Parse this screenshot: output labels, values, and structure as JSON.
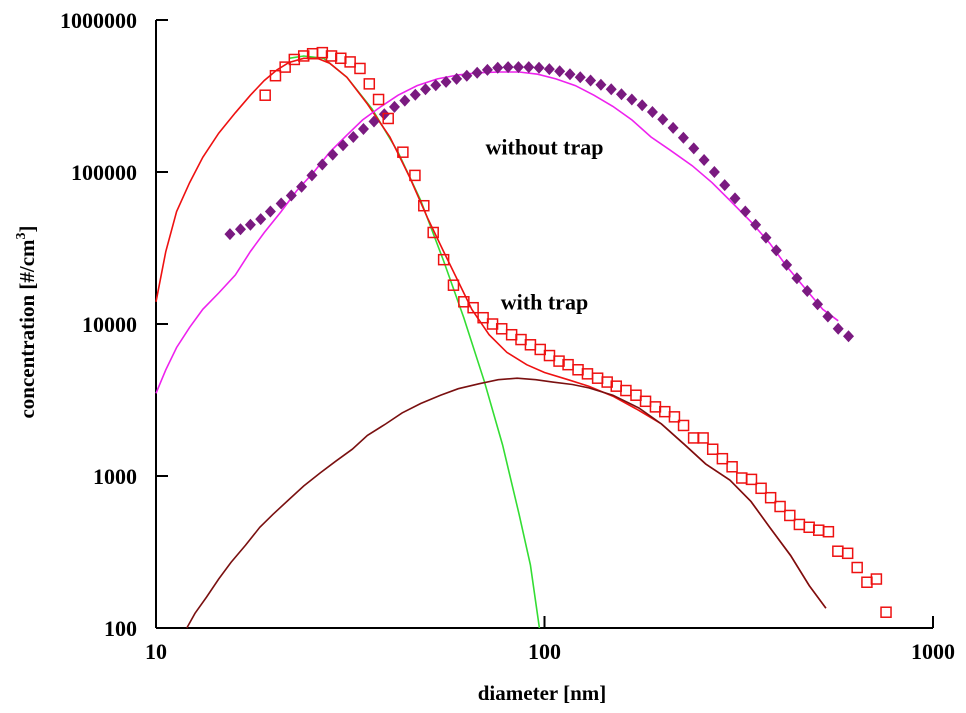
{
  "chart_data": {
    "type": "scatter",
    "title": "",
    "xlabel": "diameter [nm]",
    "ylabel_main": "concentration [#/cm",
    "ylabel_sup": "3",
    "ylabel_end": "]",
    "xscale": "log",
    "yscale": "log",
    "xlim": [
      10,
      1000
    ],
    "ylim": [
      100,
      1000000
    ],
    "x_ticks": [
      10,
      100,
      1000
    ],
    "x_tick_labels": [
      "10",
      "100",
      "1000"
    ],
    "y_ticks": [
      100,
      1000,
      10000,
      100000,
      1000000
    ],
    "y_tick_labels": [
      "100",
      "1000",
      "10000",
      "100000",
      "1000000"
    ],
    "grid": false,
    "annotations": [
      {
        "text": "without trap",
        "x": 100,
        "y": 130000
      },
      {
        "text": "with trap",
        "x": 100,
        "y": 12500
      }
    ],
    "colors": {
      "with_trap_markers": "#ee1111",
      "without_trap_markers": "#7a1a80",
      "fit_total": "#ee1111",
      "fit_mode1": "#33dd33",
      "fit_mode2": "#7a1010",
      "fit_without": "#ee22ee"
    },
    "series": [
      {
        "key": "without_trap_markers",
        "style": "diamond",
        "points": [
          [
            15.5,
            39000
          ],
          [
            16.5,
            42000
          ],
          [
            17.5,
            45000
          ],
          [
            18.6,
            49000
          ],
          [
            19.7,
            55000
          ],
          [
            21,
            62000
          ],
          [
            22.3,
            70000
          ],
          [
            23.7,
            80000
          ],
          [
            25.2,
            95000
          ],
          [
            26.8,
            112000
          ],
          [
            28.5,
            130000
          ],
          [
            30.3,
            150000
          ],
          [
            32.2,
            170000
          ],
          [
            34.2,
            192000
          ],
          [
            36.4,
            215000
          ],
          [
            38.7,
            240000
          ],
          [
            41.1,
            268000
          ],
          [
            43.7,
            295000
          ],
          [
            46.5,
            322000
          ],
          [
            49.4,
            350000
          ],
          [
            52.5,
            372000
          ],
          [
            55.8,
            392000
          ],
          [
            59.4,
            410000
          ],
          [
            63.1,
            430000
          ],
          [
            67.1,
            450000
          ],
          [
            71.3,
            470000
          ],
          [
            75.8,
            485000
          ],
          [
            80.6,
            490000
          ],
          [
            85.7,
            490000
          ],
          [
            91.1,
            490000
          ],
          [
            96.8,
            485000
          ],
          [
            102.9,
            475000
          ],
          [
            109.4,
            460000
          ],
          [
            116.3,
            440000
          ],
          [
            123.6,
            420000
          ],
          [
            131.4,
            400000
          ],
          [
            139.7,
            375000
          ],
          [
            148.5,
            350000
          ],
          [
            157.8,
            325000
          ],
          [
            167.8,
            300000
          ],
          [
            178.4,
            275000
          ],
          [
            189.6,
            248000
          ],
          [
            201.6,
            222000
          ],
          [
            214.3,
            195000
          ],
          [
            227.8,
            168000
          ],
          [
            242.2,
            143000
          ],
          [
            257.5,
            120000
          ],
          [
            273.7,
            100000
          ],
          [
            291,
            82000
          ],
          [
            309.3,
            67000
          ],
          [
            328.8,
            55000
          ],
          [
            349.5,
            45000
          ],
          [
            371.6,
            37000
          ],
          [
            395,
            30500
          ],
          [
            420,
            24500
          ],
          [
            446.4,
            20000
          ],
          [
            474.6,
            16500
          ],
          [
            504.5,
            13500
          ],
          [
            536.3,
            11200
          ],
          [
            570.1,
            9300
          ],
          [
            606.1,
            8300
          ]
        ]
      },
      {
        "key": "with_trap_markers",
        "style": "square",
        "points": [
          [
            19.1,
            320000
          ],
          [
            20.3,
            430000
          ],
          [
            21.5,
            490000
          ],
          [
            22.7,
            550000
          ],
          [
            24,
            580000
          ],
          [
            25.3,
            600000
          ],
          [
            26.8,
            610000
          ],
          [
            28.3,
            580000
          ],
          [
            29.9,
            560000
          ],
          [
            31.6,
            530000
          ],
          [
            33.5,
            480000
          ],
          [
            35.4,
            380000
          ],
          [
            37.4,
            300000
          ],
          [
            39.6,
            225000
          ],
          [
            43.2,
            135000
          ],
          [
            46.4,
            95000
          ],
          [
            48.9,
            60000
          ],
          [
            51.7,
            40000
          ],
          [
            55,
            26500
          ],
          [
            58.3,
            18000
          ],
          [
            62,
            14000
          ],
          [
            65.5,
            12800
          ],
          [
            69.5,
            11000
          ],
          [
            73.5,
            10000
          ],
          [
            77.6,
            9300
          ],
          [
            82.3,
            8500
          ],
          [
            87,
            7900
          ],
          [
            92,
            7300
          ],
          [
            97.5,
            6800
          ],
          [
            103,
            6200
          ],
          [
            109,
            5700
          ],
          [
            115,
            5400
          ],
          [
            122,
            5000
          ],
          [
            129,
            4700
          ],
          [
            137,
            4400
          ],
          [
            145,
            4150
          ],
          [
            153,
            3900
          ],
          [
            162,
            3650
          ],
          [
            172,
            3400
          ],
          [
            182,
            3100
          ],
          [
            193,
            2850
          ],
          [
            204,
            2650
          ],
          [
            216,
            2450
          ],
          [
            228,
            2150
          ],
          [
            242,
            1780
          ],
          [
            256,
            1780
          ],
          [
            271,
            1500
          ],
          [
            287,
            1300
          ],
          [
            304,
            1150
          ],
          [
            322,
            970
          ],
          [
            341,
            950
          ],
          [
            361,
            830
          ],
          [
            382,
            720
          ],
          [
            404,
            630
          ],
          [
            428,
            550
          ],
          [
            453,
            480
          ],
          [
            480,
            460
          ],
          [
            508,
            440
          ],
          [
            538,
            430
          ],
          [
            569,
            320
          ],
          [
            603,
            310
          ],
          [
            638,
            250
          ],
          [
            676,
            200
          ],
          [
            715,
            210
          ],
          [
            757,
            127
          ]
        ]
      }
    ],
    "fit_lines": [
      {
        "key": "fit_mode1",
        "points": [
          [
            22,
            560000
          ],
          [
            24,
            580000
          ],
          [
            27,
            560000
          ],
          [
            31,
            420000
          ],
          [
            36,
            260000
          ],
          [
            42,
            135000
          ],
          [
            48,
            65000
          ],
          [
            55,
            26000
          ],
          [
            62,
            11000
          ],
          [
            70,
            4200
          ],
          [
            78,
            1600
          ],
          [
            86,
            560
          ],
          [
            92,
            260
          ],
          [
            97,
            100
          ]
        ]
      },
      {
        "key": "fit_total",
        "points": [
          [
            10,
            14000
          ],
          [
            10.6,
            30000
          ],
          [
            11.3,
            55000
          ],
          [
            12.2,
            85000
          ],
          [
            13.2,
            125000
          ],
          [
            14.5,
            180000
          ],
          [
            16,
            245000
          ],
          [
            17.5,
            320000
          ],
          [
            19,
            400000
          ],
          [
            20.5,
            470000
          ],
          [
            22,
            525000
          ],
          [
            24,
            560000
          ],
          [
            26,
            560000
          ],
          [
            28,
            520000
          ],
          [
            31,
            420000
          ],
          [
            35,
            280000
          ],
          [
            40,
            170000
          ],
          [
            45,
            92000
          ],
          [
            50,
            50000
          ],
          [
            55,
            30000
          ],
          [
            60,
            19000
          ],
          [
            65,
            12500
          ],
          [
            72,
            8500
          ],
          [
            80,
            6500
          ],
          [
            90,
            5400
          ],
          [
            100,
            4800
          ],
          [
            115,
            4300
          ],
          [
            130,
            3900
          ],
          [
            150,
            3350
          ],
          [
            175,
            2700
          ],
          [
            200,
            2200
          ],
          [
            230,
            1600
          ],
          [
            260,
            1200
          ],
          [
            300,
            940
          ],
          [
            340,
            680
          ],
          [
            380,
            460
          ],
          [
            430,
            300
          ],
          [
            480,
            190
          ],
          [
            530,
            135
          ]
        ]
      },
      {
        "key": "fit_mode2",
        "points": [
          [
            12,
            100
          ],
          [
            12.6,
            125
          ],
          [
            13.5,
            160
          ],
          [
            14.5,
            210
          ],
          [
            15.6,
            270
          ],
          [
            17,
            350
          ],
          [
            18.5,
            460
          ],
          [
            20,
            560
          ],
          [
            22,
            700
          ],
          [
            24,
            860
          ],
          [
            26.5,
            1050
          ],
          [
            29,
            1250
          ],
          [
            32,
            1500
          ],
          [
            35,
            1850
          ],
          [
            39,
            2200
          ],
          [
            43,
            2600
          ],
          [
            48,
            3000
          ],
          [
            54,
            3400
          ],
          [
            60,
            3750
          ],
          [
            68,
            4050
          ],
          [
            76,
            4300
          ],
          [
            85,
            4400
          ],
          [
            95,
            4300
          ],
          [
            105,
            4150
          ],
          [
            118,
            4000
          ],
          [
            130,
            3800
          ],
          [
            150,
            3400
          ],
          [
            175,
            2800
          ],
          [
            200,
            2200
          ],
          [
            230,
            1600
          ],
          [
            260,
            1200
          ],
          [
            300,
            940
          ],
          [
            340,
            680
          ],
          [
            380,
            460
          ],
          [
            430,
            300
          ],
          [
            480,
            190
          ],
          [
            530,
            135
          ]
        ]
      },
      {
        "key": "fit_without",
        "points": [
          [
            10,
            3500
          ],
          [
            10.6,
            5000
          ],
          [
            11.3,
            7000
          ],
          [
            12.2,
            9500
          ],
          [
            13.2,
            12500
          ],
          [
            14.5,
            16000
          ],
          [
            16,
            21000
          ],
          [
            17.5,
            30000
          ],
          [
            19,
            40000
          ],
          [
            21,
            55000
          ],
          [
            23,
            75000
          ],
          [
            25.5,
            100000
          ],
          [
            28,
            135000
          ],
          [
            31,
            175000
          ],
          [
            34,
            220000
          ],
          [
            38,
            270000
          ],
          [
            42,
            320000
          ],
          [
            47,
            370000
          ],
          [
            53,
            410000
          ],
          [
            60,
            435000
          ],
          [
            68,
            450000
          ],
          [
            77,
            455000
          ],
          [
            86,
            455000
          ],
          [
            96,
            440000
          ],
          [
            107,
            410000
          ],
          [
            120,
            370000
          ],
          [
            134,
            320000
          ],
          [
            150,
            270000
          ],
          [
            168,
            220000
          ],
          [
            188,
            170000
          ],
          [
            210,
            140000
          ],
          [
            240,
            110000
          ],
          [
            270,
            85000
          ],
          [
            300,
            65000
          ],
          [
            340,
            47000
          ],
          [
            380,
            34000
          ],
          [
            420,
            24000
          ],
          [
            470,
            17000
          ],
          [
            520,
            12500
          ],
          [
            570,
            10500
          ]
        ]
      }
    ]
  }
}
